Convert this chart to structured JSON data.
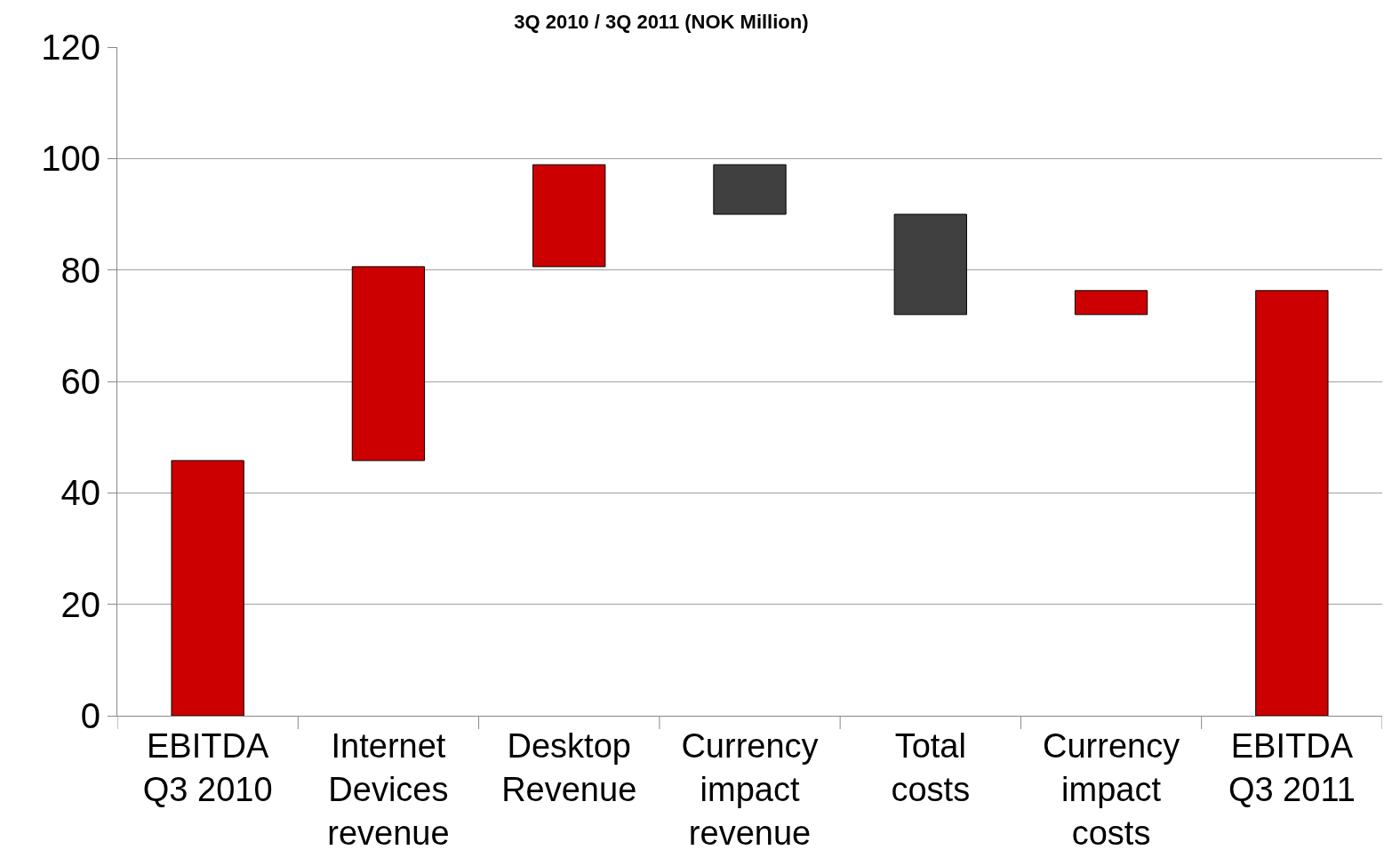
{
  "chart_data": {
    "type": "bar",
    "title": "3Q 2010 / 3Q 2011 (NOK Million)",
    "categories": [
      "EBITDA Q3 2010",
      "Internet Devices revenue",
      "Desktop Revenue",
      "Currency impact revenue",
      "Total costs",
      "Currency impact costs",
      "EBITDA Q3 2011"
    ],
    "values": [
      45.8,
      34.8,
      18.3,
      8.9,
      18.0,
      4.3,
      76.3
    ],
    "base": [
      0,
      45.8,
      80.6,
      90.0,
      72.0,
      72.0,
      0
    ],
    "colors": [
      "#cc0000",
      "#cc0000",
      "#cc0000",
      "#404040",
      "#404040",
      "#cc0000",
      "#cc0000"
    ],
    "ylim": [
      0,
      120
    ],
    "yticks": [
      0,
      20,
      40,
      60,
      80,
      100,
      120
    ],
    "grid": "y"
  }
}
